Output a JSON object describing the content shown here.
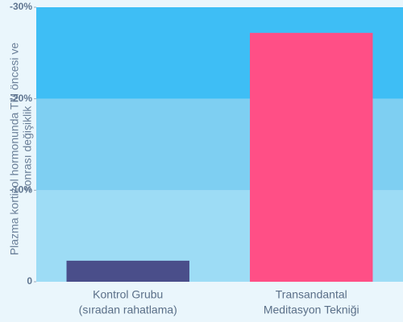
{
  "chart_data": {
    "type": "bar",
    "y_label": [
      "Plazma kortizol hormonunda TM öncesi ve",
      "sonrası değişiklik"
    ],
    "categories": [
      [
        "Kontrol Grubu",
        "(sıradan rahatlama)"
      ],
      [
        "Transandantal",
        "Meditasyon Tekniği"
      ]
    ],
    "values": [
      -2.3,
      -27.2
    ],
    "colors": [
      "#4a4e8a",
      "#ff4f86"
    ],
    "band_colors": [
      "#9ddcf5",
      "#7ecff2",
      "#3ebef5"
    ],
    "ylim": [
      0,
      -30
    ],
    "yticks": [
      0,
      {
        "value": -10,
        "label": "-10%"
      },
      {
        "value": -20,
        "label": "-20%"
      },
      {
        "value": -30,
        "label": "-30%"
      }
    ]
  }
}
